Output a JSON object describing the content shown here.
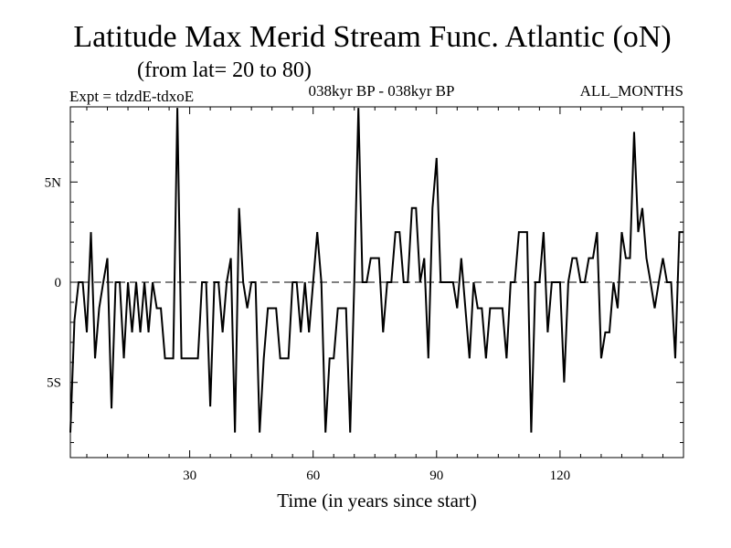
{
  "header": {
    "title": "Latitude Max Merid Stream Func. Atlantic (oN)",
    "subtitle": "(from lat= 20 to 80)",
    "experiment": "Expt = tdzdE-tdxoE",
    "period": "038kyr BP - 038kyr BP",
    "months": "ALL_MONTHS"
  },
  "chart_data": {
    "type": "line",
    "title": "Latitude Max Merid Stream Func. Atlantic (oN)",
    "subtitle": "(from lat= 20 to 80)",
    "xlabel": "Time (in years since start)",
    "ylabel": "",
    "xlim": [
      1,
      150
    ],
    "ylim": [
      -8.75,
      8.75
    ],
    "zero_line": "dashed",
    "x_ticks": [
      {
        "value": 30,
        "label": "30"
      },
      {
        "value": 60,
        "label": "60"
      },
      {
        "value": 90,
        "label": "90"
      },
      {
        "value": 120,
        "label": "120"
      }
    ],
    "y_ticks": [
      {
        "value": 5,
        "label": "5N"
      },
      {
        "value": 0,
        "label": "0"
      },
      {
        "value": -5,
        "label": "5S"
      }
    ],
    "series": [
      {
        "name": "Latitude Max Merid Stream Func",
        "x": [
          1,
          2,
          3,
          4,
          5,
          6,
          7,
          8,
          9,
          10,
          11,
          12,
          13,
          14,
          15,
          16,
          17,
          18,
          19,
          20,
          21,
          22,
          23,
          24,
          25,
          26,
          27,
          28,
          29,
          30,
          31,
          32,
          33,
          34,
          35,
          36,
          37,
          38,
          39,
          40,
          41,
          42,
          43,
          44,
          45,
          46,
          47,
          48,
          49,
          50,
          51,
          52,
          53,
          54,
          55,
          56,
          57,
          58,
          59,
          60,
          61,
          62,
          63,
          64,
          65,
          66,
          67,
          68,
          69,
          70,
          71,
          72,
          73,
          74,
          75,
          76,
          77,
          78,
          79,
          80,
          81,
          82,
          83,
          84,
          85,
          86,
          87,
          88,
          89,
          90,
          91,
          92,
          93,
          94,
          95,
          96,
          97,
          98,
          99,
          100,
          101,
          102,
          103,
          104,
          105,
          106,
          107,
          108,
          109,
          110,
          111,
          112,
          113,
          114,
          115,
          116,
          117,
          118,
          119,
          120,
          121,
          122,
          123,
          124,
          125,
          126,
          127,
          128,
          129,
          130,
          131,
          132,
          133,
          134,
          135,
          136,
          137,
          138,
          139,
          140,
          141,
          142,
          143,
          144,
          145,
          146,
          147,
          148,
          149,
          150
        ],
        "values": [
          -7.5,
          -1.9,
          0,
          0,
          -2.5,
          2.5,
          -3.8,
          -1.3,
          0,
          1.2,
          -6.3,
          0,
          0,
          -3.8,
          0,
          -2.5,
          0,
          -2.5,
          0,
          -2.5,
          0,
          -1.3,
          -1.3,
          -3.8,
          -3.8,
          -3.8,
          8.7,
          -3.8,
          -3.8,
          -3.8,
          -3.8,
          -3.8,
          0,
          0,
          -6.2,
          0,
          0,
          -2.5,
          0,
          1.2,
          -7.5,
          3.7,
          0,
          -1.3,
          0,
          0,
          -7.5,
          -3.8,
          -1.3,
          -1.3,
          -1.3,
          -3.8,
          -3.8,
          -3.8,
          0,
          0,
          -2.5,
          0,
          -2.5,
          0,
          2.5,
          0,
          -7.5,
          -3.8,
          -3.8,
          -1.3,
          -1.3,
          -1.3,
          -7.5,
          0,
          8.7,
          0,
          0,
          1.2,
          1.2,
          1.2,
          -2.5,
          0,
          0,
          2.5,
          2.5,
          0,
          0,
          3.7,
          3.7,
          0,
          1.2,
          -3.8,
          3.7,
          6.2,
          0,
          0,
          0,
          0,
          -1.3,
          1.2,
          -1.3,
          -3.8,
          0,
          -1.3,
          -1.3,
          -3.8,
          -1.3,
          -1.3,
          -1.3,
          -1.3,
          -3.8,
          0,
          0,
          2.5,
          2.5,
          2.5,
          -7.5,
          0,
          0,
          2.5,
          -2.5,
          0,
          0,
          0,
          -5.0,
          0,
          1.2,
          1.2,
          0,
          0,
          1.2,
          1.2,
          2.5,
          -3.8,
          -2.5,
          -2.5,
          0,
          -1.3,
          2.5,
          1.2,
          1.2,
          7.5,
          2.5,
          3.7,
          1.2,
          0,
          -1.3,
          0,
          1.2,
          0,
          0,
          -3.8,
          2.5,
          2.5
        ]
      }
    ]
  }
}
